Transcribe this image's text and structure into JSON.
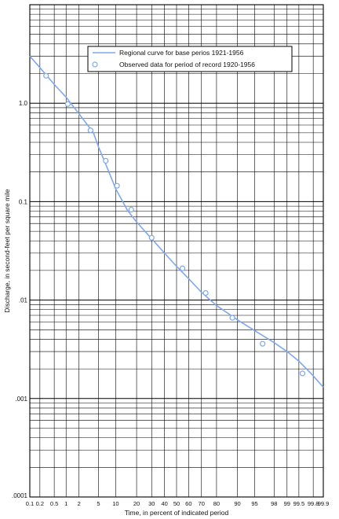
{
  "chart_data": {
    "type": "line",
    "xlabel": "Time, in percent of indicated period",
    "ylabel": "Discharge, in second-feet per square mile",
    "x_scale": "probability",
    "y_scale": "log",
    "xlim": [
      0.1,
      99.9
    ],
    "ylim": [
      0.0001,
      10
    ],
    "grid": true,
    "legend_position": "top-right",
    "x_ticks": [
      {
        "value": 0.1,
        "label": "0.1"
      },
      {
        "value": 0.2,
        "label": "0.2"
      },
      {
        "value": 0.5,
        "label": "0.5"
      },
      {
        "value": 1,
        "label": "1"
      },
      {
        "value": 2,
        "label": "2"
      },
      {
        "value": 5,
        "label": "5"
      },
      {
        "value": 10,
        "label": "10"
      },
      {
        "value": 20,
        "label": "20"
      },
      {
        "value": 30,
        "label": "30"
      },
      {
        "value": 40,
        "label": "40"
      },
      {
        "value": 50,
        "label": "50"
      },
      {
        "value": 60,
        "label": "60"
      },
      {
        "value": 70,
        "label": "70"
      },
      {
        "value": 80,
        "label": "80"
      },
      {
        "value": 90,
        "label": "90"
      },
      {
        "value": 95,
        "label": "95"
      },
      {
        "value": 98,
        "label": "98"
      },
      {
        "value": 99,
        "label": "99"
      },
      {
        "value": 99.5,
        "label": "99.5"
      },
      {
        "value": 99.8,
        "label": "99.8"
      },
      {
        "value": 99.9,
        "label": "99.9"
      }
    ],
    "y_ticks": [
      {
        "value": 1,
        "label": "1.0"
      },
      {
        "value": 0.1,
        "label": "0.1"
      },
      {
        "value": 0.01,
        "label": ".01"
      },
      {
        "value": 0.001,
        "label": ".001"
      },
      {
        "value": 0.0001,
        "label": ".0001"
      }
    ],
    "series": [
      {
        "name": "Regional curve for base perios 1921-1956",
        "kind": "line",
        "color": "#7fa8ee",
        "x": [
          0.1,
          0.2,
          0.5,
          1,
          2,
          4,
          5,
          7,
          10,
          15,
          20,
          30,
          40,
          50,
          60,
          70,
          80,
          90,
          95,
          98,
          99,
          99.5,
          99.8,
          99.9
        ],
        "y": [
          3.0,
          2.3,
          1.55,
          1.15,
          0.78,
          0.5,
          0.36,
          0.23,
          0.135,
          0.082,
          0.062,
          0.042,
          0.03,
          0.022,
          0.0165,
          0.012,
          0.0088,
          0.0063,
          0.0049,
          0.0037,
          0.003,
          0.0024,
          0.0017,
          0.0013
        ]
      },
      {
        "name": "Observed data for period of record 1920-1956",
        "kind": "scatter",
        "color": "#7fa8ee",
        "x": [
          0.3,
          1.1,
          3.5,
          6.8,
          10.5,
          17,
          30,
          55,
          73,
          88,
          96.5,
          99.6
        ],
        "y": [
          1.9,
          0.98,
          0.53,
          0.26,
          0.145,
          0.083,
          0.043,
          0.021,
          0.0118,
          0.0066,
          0.0036,
          0.0018
        ]
      }
    ]
  }
}
